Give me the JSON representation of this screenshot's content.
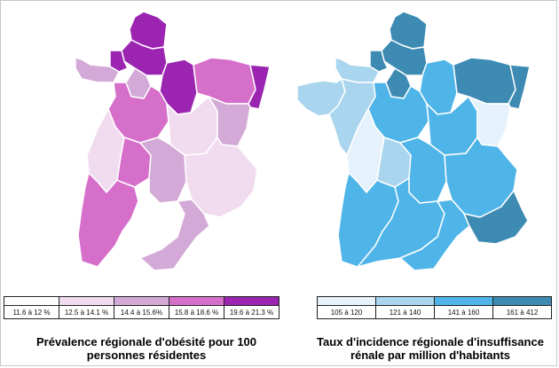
{
  "maps": {
    "obesity": {
      "caption_line1": "Prévalence régionale d'obésité pour 100",
      "caption_line2": "personnes résidentes",
      "legend": [
        {
          "label": "11.6 à 12 %",
          "color": "#ffffff"
        },
        {
          "label": "12.5 à 14.1 %",
          "color": "#f1dcef"
        },
        {
          "label": "14.4 à 15.6%",
          "color": "#d3a9d7"
        },
        {
          "label": "15.8 à 18.6 %",
          "color": "#d66fca"
        },
        {
          "label": "19.6 à 21.3 %",
          "color": "#9b25b1"
        }
      ]
    },
    "renal": {
      "caption_line1": "Taux d'incidence régionale d'insuffisance",
      "caption_line2": "rénale par million d'habitants",
      "legend": [
        {
          "label": "105 à 120",
          "color": "#e6f2fb"
        },
        {
          "label": "121 à 140",
          "color": "#aad5ee"
        },
        {
          "label": "141 à 160",
          "color": "#4fb5e8"
        },
        {
          "label": "161 à 412",
          "color": "#3d8ab3"
        }
      ]
    }
  }
}
